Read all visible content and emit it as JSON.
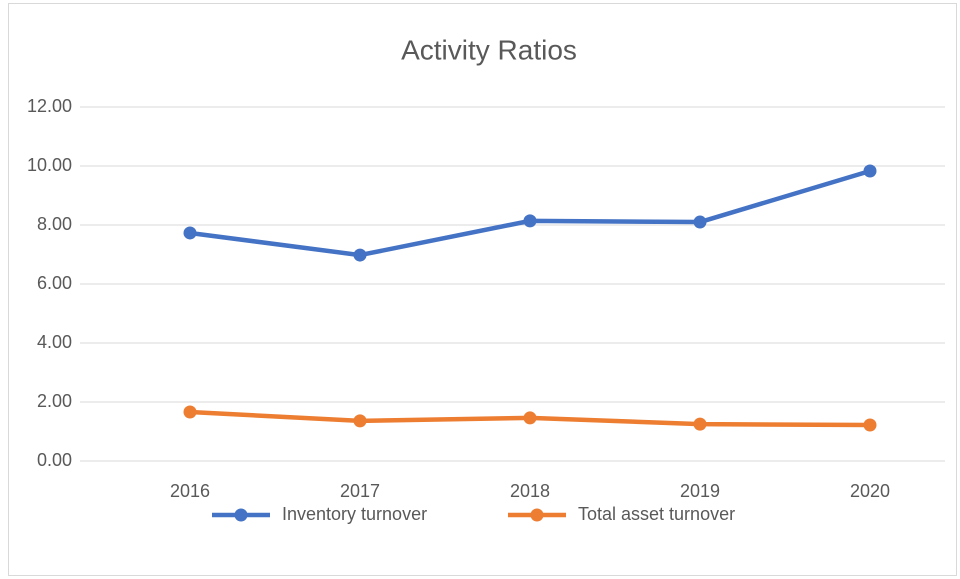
{
  "chart_data": {
    "type": "line",
    "title": "Activity Ratios",
    "categories": [
      "2016",
      "2017",
      "2018",
      "2019",
      "2020"
    ],
    "series": [
      {
        "name": "Inventory turnover",
        "color": "#4472c4",
        "values": [
          7.73,
          6.98,
          8.14,
          8.1,
          9.83
        ]
      },
      {
        "name": "Total asset turnover",
        "color": "#ed7d31",
        "values": [
          1.66,
          1.36,
          1.46,
          1.25,
          1.22
        ]
      }
    ],
    "ylim": [
      0,
      12
    ],
    "yticks": [
      {
        "value": 0,
        "label": "0.00"
      },
      {
        "value": 2,
        "label": "2.00"
      },
      {
        "value": 4,
        "label": "4.00"
      },
      {
        "value": 6,
        "label": "6.00"
      },
      {
        "value": 8,
        "label": "8.00"
      },
      {
        "value": 10,
        "label": "10.00"
      },
      {
        "value": 12,
        "label": "12.00"
      }
    ],
    "grid": true,
    "legend": "bottom"
  }
}
